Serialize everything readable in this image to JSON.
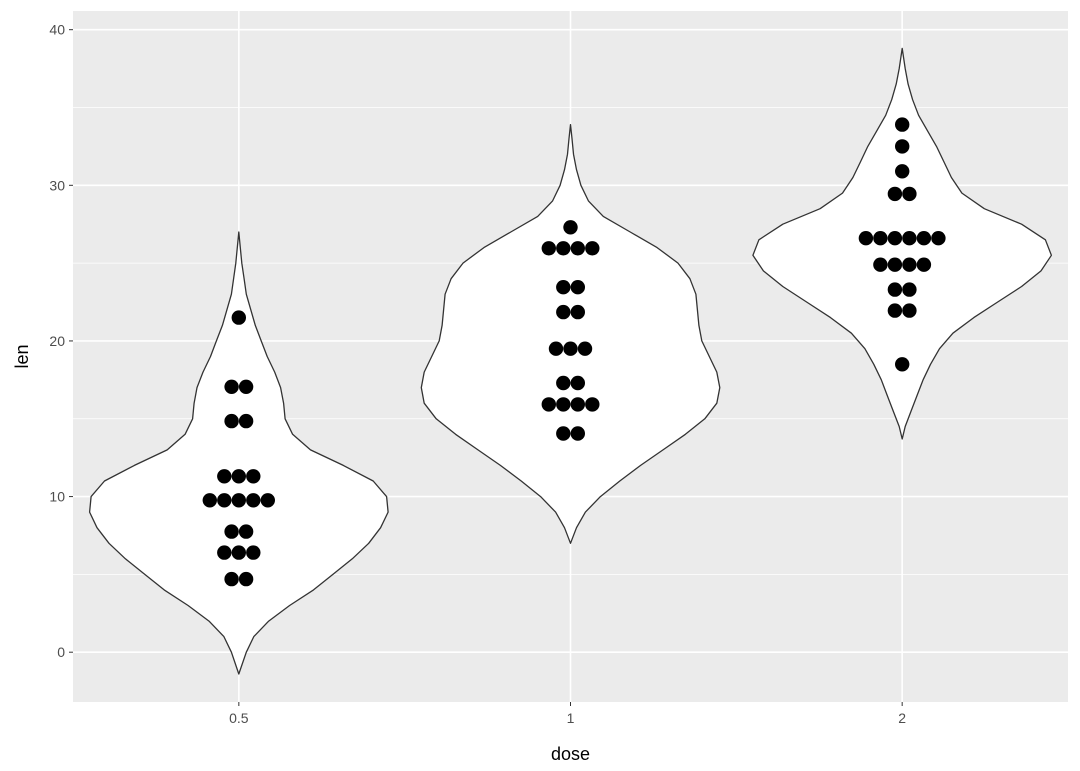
{
  "chart_data": {
    "type": "violin",
    "xlabel": "dose",
    "ylabel": "len",
    "categories": [
      "0.5",
      "1",
      "2"
    ],
    "yticks": [
      0,
      10,
      20,
      30,
      40
    ],
    "ylim": [
      -3.2,
      41.2
    ],
    "grid": true,
    "legend": "none",
    "series": [
      {
        "category": "0.5",
        "yrange": [
          -1.4,
          27.0
        ],
        "density_width_profile": [
          [
            -1.4,
            0.0
          ],
          [
            0.0,
            0.05
          ],
          [
            1.0,
            0.1
          ],
          [
            2.0,
            0.2
          ],
          [
            3.0,
            0.34
          ],
          [
            4.0,
            0.5
          ],
          [
            5.0,
            0.63
          ],
          [
            6.0,
            0.76
          ],
          [
            7.0,
            0.87
          ],
          [
            8.0,
            0.95
          ],
          [
            9.0,
            1.0
          ],
          [
            10.0,
            0.99
          ],
          [
            11.0,
            0.9
          ],
          [
            12.0,
            0.7
          ],
          [
            13.0,
            0.48
          ],
          [
            14.0,
            0.36
          ],
          [
            15.0,
            0.31
          ],
          [
            16.0,
            0.3
          ],
          [
            17.0,
            0.28
          ],
          [
            18.0,
            0.24
          ],
          [
            19.0,
            0.19
          ],
          [
            20.0,
            0.15
          ],
          [
            21.0,
            0.11
          ],
          [
            22.0,
            0.08
          ],
          [
            23.0,
            0.05
          ],
          [
            24.0,
            0.035
          ],
          [
            25.0,
            0.02
          ],
          [
            26.0,
            0.01
          ],
          [
            27.0,
            0.0
          ]
        ],
        "points": [
          4.2,
          5.2,
          5.8,
          6.4,
          7.0,
          7.3,
          8.2,
          9.4,
          9.7,
          9.7,
          10.0,
          10.0,
          11.2,
          11.2,
          11.5,
          14.5,
          15.2,
          16.5,
          17.6,
          21.5
        ]
      },
      {
        "category": "1",
        "yrange": [
          7.0,
          33.9
        ],
        "density_width_profile": [
          [
            7.0,
            0.0
          ],
          [
            8.0,
            0.04
          ],
          [
            9.0,
            0.1
          ],
          [
            10.0,
            0.2
          ],
          [
            11.0,
            0.33
          ],
          [
            12.0,
            0.47
          ],
          [
            13.0,
            0.62
          ],
          [
            14.0,
            0.77
          ],
          [
            15.0,
            0.9
          ],
          [
            16.0,
            0.98
          ],
          [
            17.0,
            1.0
          ],
          [
            18.0,
            0.98
          ],
          [
            19.0,
            0.93
          ],
          [
            20.0,
            0.88
          ],
          [
            21.0,
            0.86
          ],
          [
            22.0,
            0.85
          ],
          [
            23.0,
            0.84
          ],
          [
            24.0,
            0.8
          ],
          [
            25.0,
            0.72
          ],
          [
            26.0,
            0.58
          ],
          [
            27.0,
            0.4
          ],
          [
            28.0,
            0.22
          ],
          [
            29.0,
            0.12
          ],
          [
            30.0,
            0.07
          ],
          [
            31.0,
            0.04
          ],
          [
            32.0,
            0.02
          ],
          [
            33.0,
            0.01
          ],
          [
            33.9,
            0.0
          ]
        ],
        "points": [
          13.6,
          14.5,
          15.2,
          15.5,
          16.5,
          16.5,
          17.3,
          17.3,
          18.8,
          19.7,
          20.0,
          21.2,
          22.5,
          23.3,
          23.6,
          25.2,
          25.8,
          26.4,
          26.4,
          27.3
        ]
      },
      {
        "category": "2",
        "yrange": [
          13.7,
          38.8
        ],
        "density_width_profile": [
          [
            13.7,
            0.0
          ],
          [
            14.5,
            0.02
          ],
          [
            15.5,
            0.06
          ],
          [
            16.5,
            0.1
          ],
          [
            17.5,
            0.14
          ],
          [
            18.5,
            0.19
          ],
          [
            19.5,
            0.25
          ],
          [
            20.5,
            0.34
          ],
          [
            21.5,
            0.48
          ],
          [
            22.5,
            0.64
          ],
          [
            23.5,
            0.8
          ],
          [
            24.5,
            0.93
          ],
          [
            25.5,
            1.0
          ],
          [
            26.5,
            0.96
          ],
          [
            27.5,
            0.8
          ],
          [
            28.5,
            0.55
          ],
          [
            29.5,
            0.4
          ],
          [
            30.5,
            0.33
          ],
          [
            31.5,
            0.28
          ],
          [
            32.5,
            0.23
          ],
          [
            33.5,
            0.17
          ],
          [
            34.5,
            0.11
          ],
          [
            35.5,
            0.07
          ],
          [
            36.5,
            0.04
          ],
          [
            37.5,
            0.02
          ],
          [
            38.8,
            0.0
          ]
        ],
        "points": [
          18.5,
          21.5,
          22.4,
          23.0,
          23.6,
          24.5,
          24.8,
          25.5,
          26.4,
          26.4,
          26.4,
          26.7,
          27.3,
          29.4,
          29.5,
          30.9,
          32.5,
          33.9,
          26.4,
          24.8
        ]
      }
    ]
  }
}
